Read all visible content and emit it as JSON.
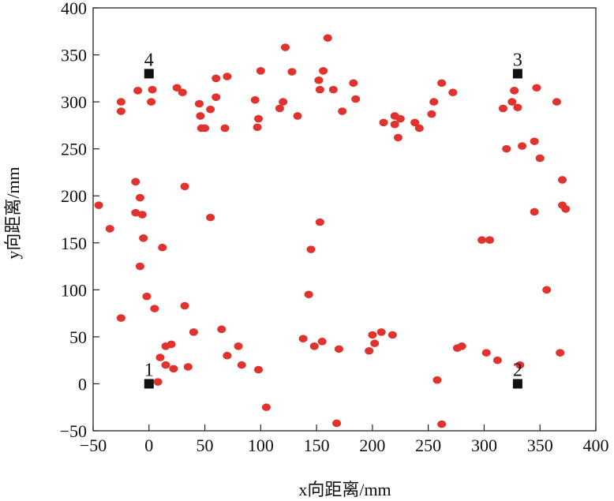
{
  "chart_data": {
    "type": "scatter",
    "title": "",
    "xlabel": "x向距离/mm",
    "ylabel": "y向距离/mm",
    "xlim": [
      -50,
      400
    ],
    "ylim": [
      -50,
      400
    ],
    "xticks": [
      "−50",
      "0",
      "50",
      "100",
      "150",
      "200",
      "250",
      "300",
      "350",
      "400"
    ],
    "yticks": [
      "−50",
      "0",
      "50",
      "100",
      "150",
      "200",
      "250",
      "300",
      "350",
      "400"
    ],
    "xtick_values": [
      -50,
      0,
      50,
      100,
      150,
      200,
      250,
      300,
      350,
      400
    ],
    "ytick_values": [
      -50,
      0,
      50,
      100,
      150,
      200,
      250,
      300,
      350,
      400
    ],
    "grid": false,
    "anchors": [
      {
        "label": "1",
        "x": 0,
        "y": 0
      },
      {
        "label": "2",
        "x": 330,
        "y": 0
      },
      {
        "label": "3",
        "x": 330,
        "y": 330
      },
      {
        "label": "4",
        "x": 0,
        "y": 330
      }
    ],
    "anchor_color": "#111111",
    "point_color": "#e0332e",
    "points": [
      {
        "x": -45,
        "y": 190
      },
      {
        "x": -35,
        "y": 165
      },
      {
        "x": -25,
        "y": 300
      },
      {
        "x": -25,
        "y": 290
      },
      {
        "x": -25,
        "y": 70
      },
      {
        "x": -12,
        "y": 215
      },
      {
        "x": -12,
        "y": 182
      },
      {
        "x": -10,
        "y": 312
      },
      {
        "x": -8,
        "y": 198
      },
      {
        "x": -8,
        "y": 125
      },
      {
        "x": -6,
        "y": 180
      },
      {
        "x": -5,
        "y": 155
      },
      {
        "x": -2,
        "y": 93
      },
      {
        "x": 2,
        "y": 300
      },
      {
        "x": 3,
        "y": 313
      },
      {
        "x": 5,
        "y": 80
      },
      {
        "x": 8,
        "y": 2
      },
      {
        "x": 10,
        "y": 28
      },
      {
        "x": 12,
        "y": 145
      },
      {
        "x": 15,
        "y": 40
      },
      {
        "x": 15,
        "y": 20
      },
      {
        "x": 20,
        "y": 42
      },
      {
        "x": 22,
        "y": 16
      },
      {
        "x": 25,
        "y": 315
      },
      {
        "x": 30,
        "y": 310
      },
      {
        "x": 32,
        "y": 210
      },
      {
        "x": 32,
        "y": 83
      },
      {
        "x": 35,
        "y": 18
      },
      {
        "x": 40,
        "y": 55
      },
      {
        "x": 45,
        "y": 298
      },
      {
        "x": 46,
        "y": 285
      },
      {
        "x": 47,
        "y": 272
      },
      {
        "x": 50,
        "y": 272
      },
      {
        "x": 55,
        "y": 292
      },
      {
        "x": 55,
        "y": 177
      },
      {
        "x": 60,
        "y": 305
      },
      {
        "x": 60,
        "y": 325
      },
      {
        "x": 65,
        "y": 58
      },
      {
        "x": 68,
        "y": 272
      },
      {
        "x": 70,
        "y": 327
      },
      {
        "x": 70,
        "y": 30
      },
      {
        "x": 80,
        "y": 40
      },
      {
        "x": 83,
        "y": 20
      },
      {
        "x": 95,
        "y": 302
      },
      {
        "x": 97,
        "y": 273
      },
      {
        "x": 98,
        "y": 282
      },
      {
        "x": 98,
        "y": 15
      },
      {
        "x": 100,
        "y": 333
      },
      {
        "x": 105,
        "y": -25
      },
      {
        "x": 117,
        "y": 293
      },
      {
        "x": 120,
        "y": 300
      },
      {
        "x": 122,
        "y": 358
      },
      {
        "x": 128,
        "y": 332
      },
      {
        "x": 133,
        "y": 285
      },
      {
        "x": 138,
        "y": 48
      },
      {
        "x": 143,
        "y": 95
      },
      {
        "x": 145,
        "y": 143
      },
      {
        "x": 148,
        "y": 40
      },
      {
        "x": 152,
        "y": 323
      },
      {
        "x": 153,
        "y": 313
      },
      {
        "x": 153,
        "y": 172
      },
      {
        "x": 155,
        "y": 45
      },
      {
        "x": 156,
        "y": 333
      },
      {
        "x": 160,
        "y": 368
      },
      {
        "x": 165,
        "y": 313
      },
      {
        "x": 168,
        "y": -42
      },
      {
        "x": 170,
        "y": 37
      },
      {
        "x": 173,
        "y": 290
      },
      {
        "x": 183,
        "y": 320
      },
      {
        "x": 185,
        "y": 303
      },
      {
        "x": 197,
        "y": 35
      },
      {
        "x": 200,
        "y": 52
      },
      {
        "x": 202,
        "y": 43
      },
      {
        "x": 208,
        "y": 55
      },
      {
        "x": 210,
        "y": 278
      },
      {
        "x": 218,
        "y": 52
      },
      {
        "x": 220,
        "y": 285
      },
      {
        "x": 220,
        "y": 276
      },
      {
        "x": 223,
        "y": 262
      },
      {
        "x": 225,
        "y": 282
      },
      {
        "x": 238,
        "y": 278
      },
      {
        "x": 242,
        "y": 272
      },
      {
        "x": 253,
        "y": 287
      },
      {
        "x": 255,
        "y": 300
      },
      {
        "x": 258,
        "y": 4
      },
      {
        "x": 262,
        "y": 320
      },
      {
        "x": 262,
        "y": -43
      },
      {
        "x": 272,
        "y": 310
      },
      {
        "x": 276,
        "y": 38
      },
      {
        "x": 280,
        "y": 40
      },
      {
        "x": 298,
        "y": 153
      },
      {
        "x": 302,
        "y": 33
      },
      {
        "x": 305,
        "y": 153
      },
      {
        "x": 312,
        "y": 25
      },
      {
        "x": 317,
        "y": 293
      },
      {
        "x": 320,
        "y": 250
      },
      {
        "x": 325,
        "y": 300
      },
      {
        "x": 327,
        "y": 312
      },
      {
        "x": 330,
        "y": 294
      },
      {
        "x": 332,
        "y": 20
      },
      {
        "x": 334,
        "y": 253
      },
      {
        "x": 345,
        "y": 258
      },
      {
        "x": 345,
        "y": 183
      },
      {
        "x": 347,
        "y": 315
      },
      {
        "x": 350,
        "y": 240
      },
      {
        "x": 356,
        "y": 100
      },
      {
        "x": 365,
        "y": 300
      },
      {
        "x": 368,
        "y": 33
      },
      {
        "x": 370,
        "y": 217
      },
      {
        "x": 370,
        "y": 190
      },
      {
        "x": 373,
        "y": 186
      }
    ]
  }
}
